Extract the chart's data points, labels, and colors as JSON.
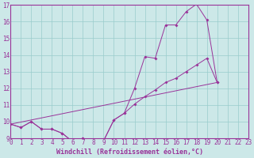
{
  "xlabel": "Windchill (Refroidissement éolien,°C)",
  "background_color": "#cce8e8",
  "grid_color": "#99cccc",
  "line_color": "#993399",
  "series1_x": [
    0,
    1,
    2,
    3,
    4,
    5,
    6,
    7,
    8,
    9,
    10,
    11,
    12,
    13,
    14,
    15,
    16,
    17,
    18,
    19,
    20
  ],
  "series1_y": [
    9.85,
    9.65,
    10.0,
    9.55,
    9.55,
    9.3,
    8.8,
    9.0,
    8.85,
    8.85,
    10.1,
    10.5,
    12.0,
    13.9,
    13.8,
    15.8,
    15.8,
    16.6,
    17.05,
    16.1,
    12.35
  ],
  "series2_x": [
    0,
    1,
    2,
    3,
    4,
    5,
    6,
    7,
    8,
    9,
    10,
    11,
    12,
    13,
    14,
    15,
    16,
    17,
    18,
    19,
    20
  ],
  "series2_y": [
    9.85,
    9.65,
    10.0,
    9.55,
    9.55,
    9.3,
    8.8,
    9.0,
    8.85,
    8.85,
    10.1,
    10.5,
    11.05,
    11.5,
    11.9,
    12.35,
    12.6,
    13.0,
    13.4,
    13.8,
    12.35
  ],
  "series3_x": [
    0,
    20
  ],
  "series3_y": [
    9.85,
    12.35
  ],
  "ylim_min": 9,
  "ylim_max": 17,
  "xlim_min": 0,
  "xlim_max": 23,
  "yticks": [
    9,
    10,
    11,
    12,
    13,
    14,
    15,
    16,
    17
  ],
  "xticks": [
    0,
    1,
    2,
    3,
    4,
    5,
    6,
    7,
    8,
    9,
    10,
    11,
    12,
    13,
    14,
    15,
    16,
    17,
    18,
    19,
    20,
    21,
    22,
    23
  ],
  "tick_fontsize": 5.5,
  "xlabel_fontsize": 6.0
}
